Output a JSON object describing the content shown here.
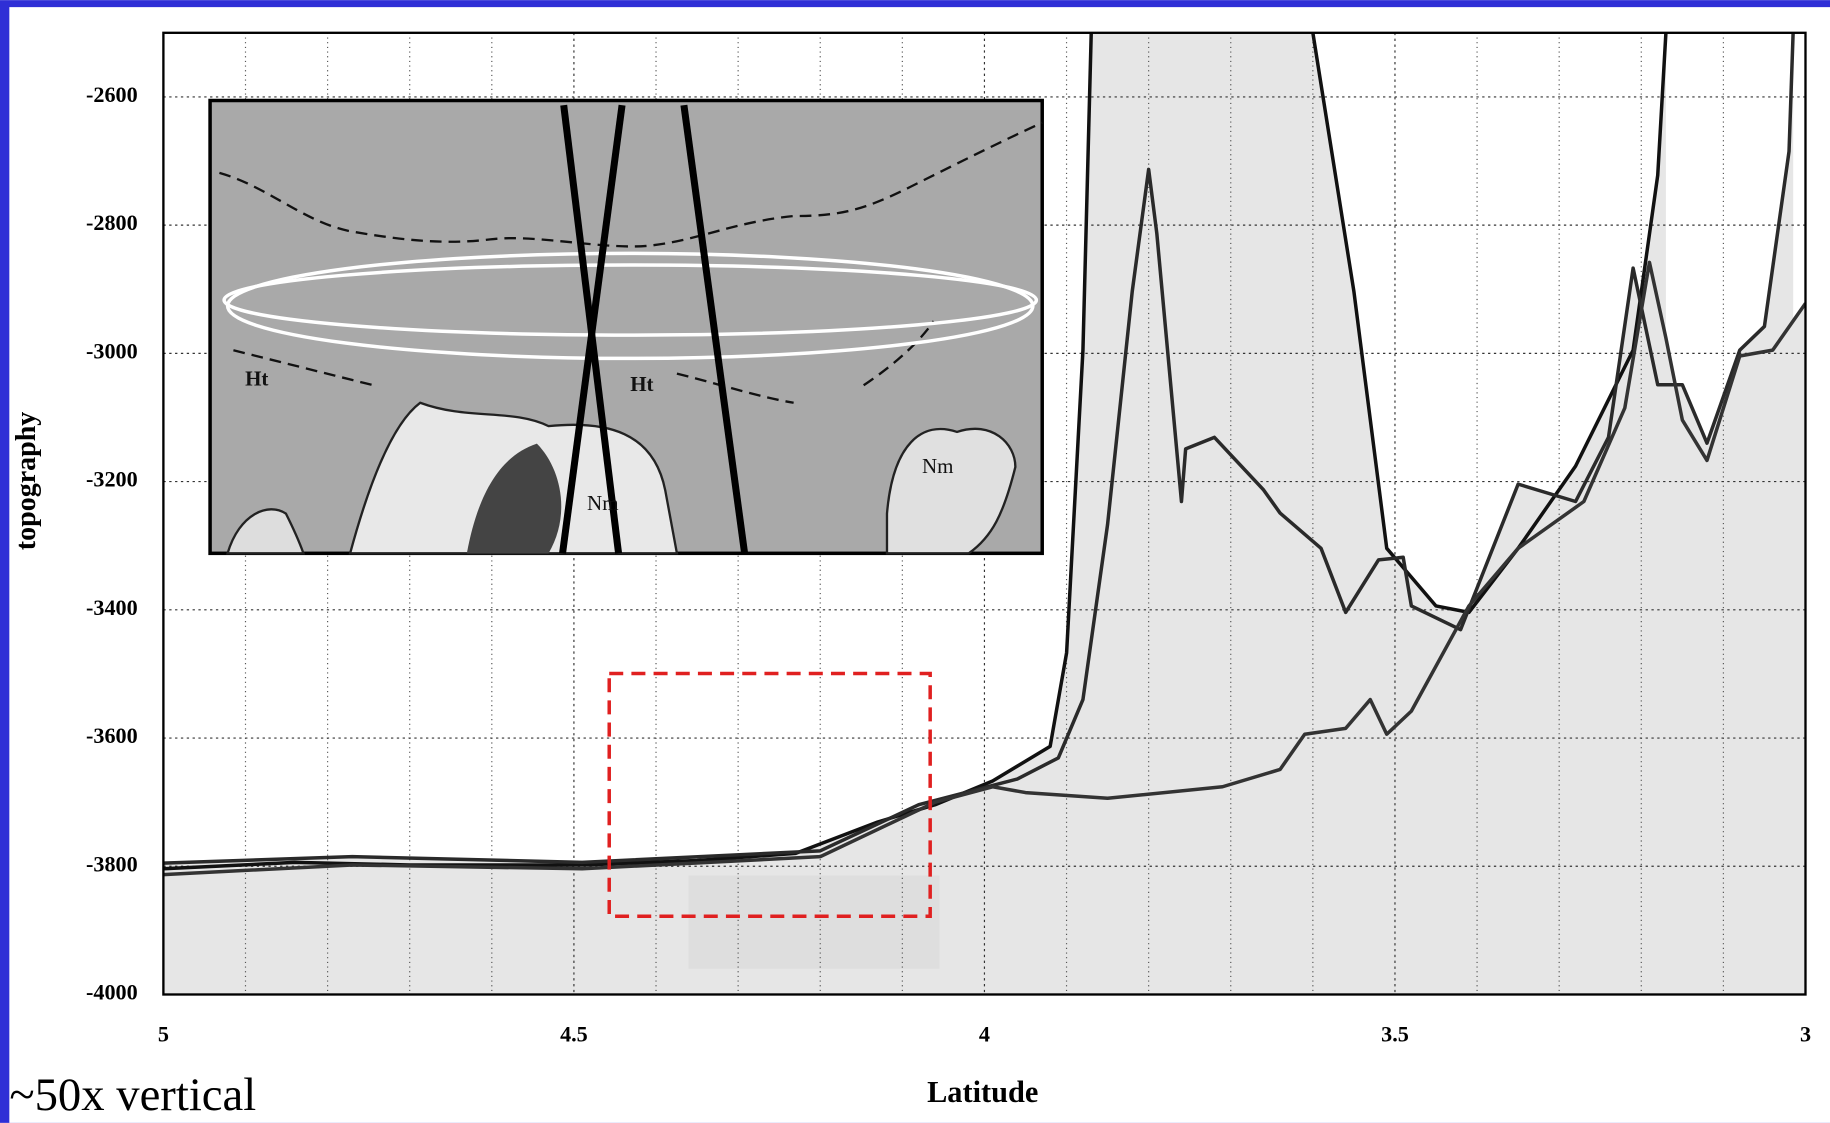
{
  "chart_data": {
    "type": "line",
    "xlabel": "Latitude",
    "ylabel": "topography",
    "annotations": [
      "~50x vertical"
    ],
    "inset_labels": [
      "Ht",
      "Ht",
      "Nm",
      "Nm"
    ],
    "xlim": [
      5,
      3
    ],
    "ylim": [
      -4000,
      -2500
    ],
    "xticks": [
      5,
      4.5,
      4,
      3.5,
      3
    ],
    "xminorticks": [
      4.9,
      4.8,
      4.7,
      4.6,
      4.4,
      4.3,
      4.2,
      4.1,
      3.9,
      3.8,
      3.7,
      3.6,
      3.4,
      3.3,
      3.2,
      3.1
    ],
    "yticks": [
      -4000,
      -3800,
      -3600,
      -3400,
      -3200,
      -3000,
      -2800,
      -2600
    ],
    "grid": true,
    "fill_color": "#e6e6e6",
    "series": [
      {
        "color": "#111111",
        "x": [
          5.0,
          4.84,
          4.7,
          4.49,
          4.35,
          4.23,
          4.13,
          4.06,
          3.99,
          3.92,
          3.9,
          3.88,
          3.87,
          3.75,
          3.6,
          3.55,
          3.51,
          3.45,
          3.41,
          3.35,
          3.28,
          3.21,
          3.18,
          3.17
        ],
        "values": [
          -3804,
          -3794,
          -3798,
          -3798,
          -3791,
          -3780,
          -3731,
          -3704,
          -3667,
          -3613,
          -3467,
          -2995,
          -2500,
          null,
          -2500,
          -2904,
          -3304,
          -3394,
          -3404,
          -3304,
          -3176,
          -2995,
          -2722,
          -2500
        ]
      },
      {
        "color": "#2a2a2a",
        "x": [
          5.0,
          4.77,
          4.49,
          4.2,
          4.08,
          3.96,
          3.91,
          3.88,
          3.85,
          3.82,
          3.8,
          3.79,
          3.76,
          3.755,
          3.72,
          3.66,
          3.64,
          3.59,
          3.56,
          3.52,
          3.49,
          3.48,
          3.42,
          3.35,
          3.28,
          3.24,
          3.21,
          3.18,
          3.15,
          3.12,
          3.08,
          3.05,
          3.02,
          3.015
        ],
        "values": [
          -3795,
          -3785,
          -3794,
          -3776,
          -3704,
          -3664,
          -3631,
          -3540,
          -3267,
          -2904,
          -2713,
          -2813,
          -3231,
          -3149,
          -3131,
          -3213,
          -3249,
          -3304,
          -3404,
          -3322,
          -3318,
          -3394,
          -3431,
          -3204,
          -3231,
          -3131,
          -2867,
          -3049,
          -3049,
          -3140,
          -2995,
          -2958,
          -2685,
          -2500
        ]
      },
      {
        "color": "#333333",
        "x": [
          5.0,
          4.77,
          4.49,
          4.2,
          4.06,
          3.99,
          3.95,
          3.85,
          3.71,
          3.64,
          3.61,
          3.56,
          3.53,
          3.51,
          3.48,
          3.41,
          3.35,
          3.27,
          3.22,
          3.19,
          3.17,
          3.15,
          3.12,
          3.08,
          3.04,
          3.0
        ],
        "values": [
          -3813,
          -3798,
          -3804,
          -3785,
          -3700,
          -3676,
          -3685,
          -3694,
          -3676,
          -3649,
          -3594,
          -3585,
          -3540,
          -3594,
          -3558,
          -3394,
          -3304,
          -3231,
          -3085,
          -2858,
          -2976,
          -3104,
          -3167,
          -3004,
          -2995,
          -2922
        ]
      }
    ]
  }
}
